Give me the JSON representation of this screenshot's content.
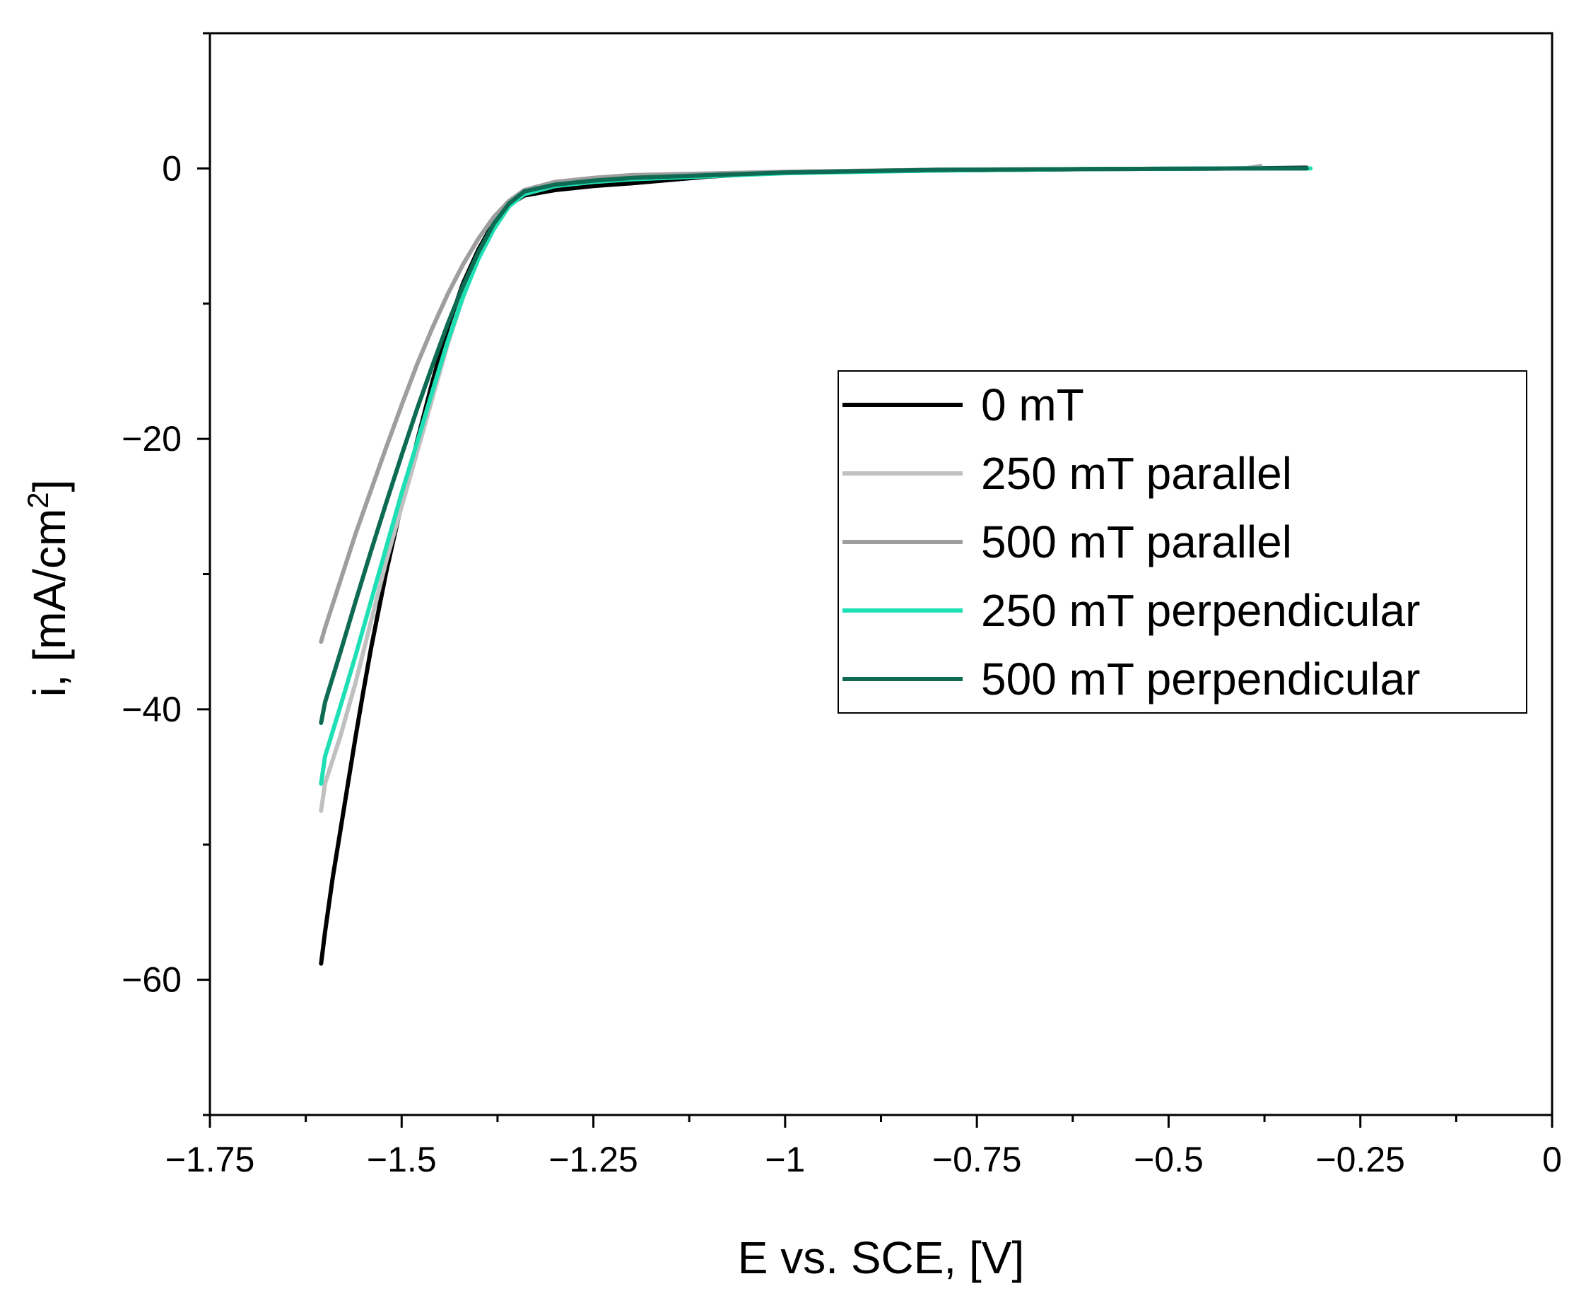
{
  "chart_data": {
    "type": "line",
    "title": "",
    "xlabel": "E vs. SCE, [V]",
    "ylabel": "i, [mA/cm",
    "ylabel_sup": "2",
    "ylabel_close": "]",
    "xlim": [
      -1.75,
      0
    ],
    "ylim": [
      -70,
      10
    ],
    "x_ticks": [
      -1.75,
      -1.5,
      -1.25,
      -1,
      -0.75,
      -0.5,
      -0.25,
      0
    ],
    "x_tick_labels": [
      "−1.75",
      "−1.5",
      "−1.25",
      "−1",
      "−0.75",
      "−0.5",
      "−0.25",
      "0"
    ],
    "y_ticks": [
      0,
      -20,
      -40,
      -60
    ],
    "y_tick_labels": [
      "0",
      "−20",
      "−40",
      "−60"
    ],
    "legend_position": "center-right",
    "grid": false,
    "series": [
      {
        "name": "0 mT",
        "color": "#000000",
        "points": [
          [
            -1.605,
            -58.8
          ],
          [
            -1.6,
            -56.5
          ],
          [
            -1.59,
            -52.5
          ],
          [
            -1.58,
            -49.0
          ],
          [
            -1.57,
            -45.5
          ],
          [
            -1.56,
            -42.0
          ],
          [
            -1.55,
            -38.7
          ],
          [
            -1.54,
            -35.5
          ],
          [
            -1.52,
            -29.8
          ],
          [
            -1.5,
            -24.8
          ],
          [
            -1.48,
            -20.2
          ],
          [
            -1.46,
            -15.8
          ],
          [
            -1.44,
            -11.8
          ],
          [
            -1.42,
            -8.5
          ],
          [
            -1.4,
            -6.0
          ],
          [
            -1.38,
            -4.0
          ],
          [
            -1.36,
            -2.7
          ],
          [
            -1.34,
            -2.0
          ],
          [
            -1.3,
            -1.6
          ],
          [
            -1.25,
            -1.3
          ],
          [
            -1.2,
            -1.1
          ],
          [
            -1.1,
            -0.6
          ],
          [
            -1.0,
            -0.3
          ],
          [
            -0.8,
            -0.15
          ],
          [
            -0.6,
            -0.05
          ],
          [
            -0.4,
            0.0
          ],
          [
            -0.32,
            0.05
          ]
        ]
      },
      {
        "name": "250 mT parallel",
        "color": "#c0c0c0",
        "points": [
          [
            -1.605,
            -47.5
          ],
          [
            -1.6,
            -45.5
          ],
          [
            -1.58,
            -42.0
          ],
          [
            -1.56,
            -38.0
          ],
          [
            -1.54,
            -33.5
          ],
          [
            -1.52,
            -29.0
          ],
          [
            -1.5,
            -25.0
          ],
          [
            -1.48,
            -21.0
          ],
          [
            -1.46,
            -17.0
          ],
          [
            -1.44,
            -13.0
          ],
          [
            -1.42,
            -9.5
          ],
          [
            -1.4,
            -6.5
          ],
          [
            -1.38,
            -4.2
          ],
          [
            -1.36,
            -2.6
          ],
          [
            -1.34,
            -1.6
          ],
          [
            -1.3,
            -1.0
          ],
          [
            -1.25,
            -0.7
          ],
          [
            -1.2,
            -0.5
          ],
          [
            -1.0,
            -0.25
          ],
          [
            -0.8,
            -0.1
          ],
          [
            -0.6,
            -0.05
          ],
          [
            -0.4,
            0.0
          ],
          [
            -0.38,
            0.2
          ]
        ]
      },
      {
        "name": "500 mT parallel",
        "color": "#9e9e9e",
        "points": [
          [
            -1.605,
            -35.0
          ],
          [
            -1.6,
            -34.0
          ],
          [
            -1.58,
            -30.5
          ],
          [
            -1.56,
            -27.0
          ],
          [
            -1.54,
            -23.8
          ],
          [
            -1.52,
            -20.6
          ],
          [
            -1.5,
            -17.5
          ],
          [
            -1.48,
            -14.5
          ],
          [
            -1.46,
            -11.8
          ],
          [
            -1.44,
            -9.3
          ],
          [
            -1.42,
            -7.1
          ],
          [
            -1.4,
            -5.2
          ],
          [
            -1.38,
            -3.6
          ],
          [
            -1.36,
            -2.4
          ],
          [
            -1.34,
            -1.6
          ],
          [
            -1.3,
            -1.0
          ],
          [
            -1.25,
            -0.7
          ],
          [
            -1.2,
            -0.5
          ],
          [
            -1.0,
            -0.25
          ],
          [
            -0.8,
            -0.1
          ],
          [
            -0.6,
            -0.05
          ],
          [
            -0.4,
            0.0
          ],
          [
            -0.38,
            0.1
          ]
        ]
      },
      {
        "name": "250 mT perpendicular",
        "color": "#1ee0b4",
        "points": [
          [
            -1.605,
            -45.5
          ],
          [
            -1.6,
            -43.5
          ],
          [
            -1.58,
            -39.8
          ],
          [
            -1.56,
            -36.0
          ],
          [
            -1.54,
            -32.0
          ],
          [
            -1.52,
            -28.0
          ],
          [
            -1.5,
            -24.0
          ],
          [
            -1.48,
            -20.3
          ],
          [
            -1.46,
            -16.5
          ],
          [
            -1.44,
            -12.8
          ],
          [
            -1.42,
            -9.5
          ],
          [
            -1.4,
            -6.7
          ],
          [
            -1.38,
            -4.5
          ],
          [
            -1.36,
            -2.8
          ],
          [
            -1.34,
            -1.9
          ],
          [
            -1.3,
            -1.3
          ],
          [
            -1.25,
            -1.0
          ],
          [
            -1.2,
            -0.8
          ],
          [
            -1.0,
            -0.35
          ],
          [
            -0.8,
            -0.15
          ],
          [
            -0.6,
            -0.05
          ],
          [
            -0.4,
            0.0
          ],
          [
            -0.315,
            0.0
          ]
        ]
      },
      {
        "name": "500 mT perpendicular",
        "color": "#0d6b53",
        "points": [
          [
            -1.605,
            -41.0
          ],
          [
            -1.6,
            -39.5
          ],
          [
            -1.58,
            -35.8
          ],
          [
            -1.56,
            -32.0
          ],
          [
            -1.54,
            -28.3
          ],
          [
            -1.52,
            -24.7
          ],
          [
            -1.5,
            -21.2
          ],
          [
            -1.48,
            -17.8
          ],
          [
            -1.46,
            -14.6
          ],
          [
            -1.44,
            -11.5
          ],
          [
            -1.42,
            -8.7
          ],
          [
            -1.4,
            -6.2
          ],
          [
            -1.38,
            -4.1
          ],
          [
            -1.36,
            -2.6
          ],
          [
            -1.34,
            -1.7
          ],
          [
            -1.3,
            -1.2
          ],
          [
            -1.25,
            -0.9
          ],
          [
            -1.2,
            -0.7
          ],
          [
            -1.0,
            -0.3
          ],
          [
            -0.8,
            -0.1
          ],
          [
            -0.6,
            -0.05
          ],
          [
            -0.4,
            0.0
          ],
          [
            -0.32,
            0.0
          ]
        ]
      }
    ]
  }
}
